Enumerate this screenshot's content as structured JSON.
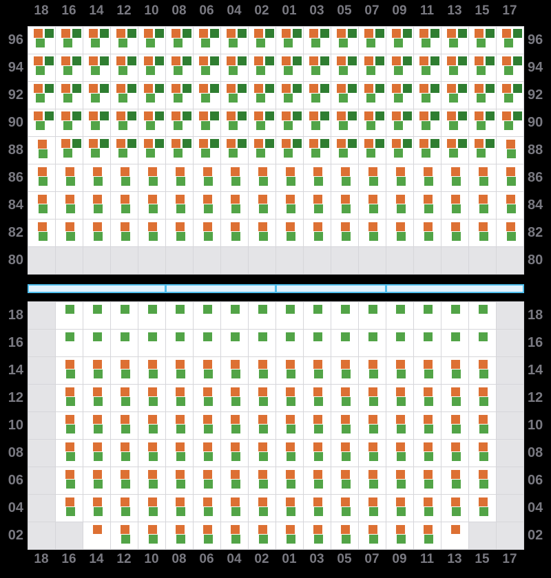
{
  "palette": {
    "background": "#000000",
    "cell_bg": "#ffffff",
    "cell_border": "#d6d6da",
    "empty_cell_bg": "#e4e4e7",
    "orange": "#dd7033",
    "dark_green": "#2f7e31",
    "green": "#52a447",
    "label_color": "#797981",
    "corridor_fill": "#e1f1fc",
    "corridor_border": "#50bfee"
  },
  "columns": [
    "18",
    "16",
    "14",
    "12",
    "10",
    "08",
    "06",
    "04",
    "02",
    "01",
    "03",
    "05",
    "07",
    "09",
    "11",
    "13",
    "15",
    "17"
  ],
  "cell_types": {
    "T": [
      "orange",
      "dark_green",
      "green"
    ],
    "D": [
      "orange",
      "green"
    ],
    "G": [
      "green"
    ],
    "O": [
      "orange"
    ],
    "X": []
  },
  "upper_panel": {
    "rows": [
      {
        "label": "96",
        "cells": "TTTTTTTTTTTTTTTTTT"
      },
      {
        "label": "94",
        "cells": "TTTTTTTTTTTTTTTTTT"
      },
      {
        "label": "92",
        "cells": "TTTTTTTTTTTTTTTTTT"
      },
      {
        "label": "90",
        "cells": "TTTTTTTTTTTTTTTTTT"
      },
      {
        "label": "88",
        "cells": "DTTTTTTTTTTTTTTTTD"
      },
      {
        "label": "86",
        "cells": "DDDDDDDDDDDDDDDDDD"
      },
      {
        "label": "84",
        "cells": "DDDDDDDDDDDDDDDDDD"
      },
      {
        "label": "82",
        "cells": "DDDDDDDDDDDDDDDDDD"
      },
      {
        "label": "80",
        "cells": "XXXXXXXXXXXXXXXXXX"
      }
    ]
  },
  "corridor": {
    "segments_in_columns": [
      5,
      4,
      4,
      5
    ]
  },
  "lower_panel": {
    "rows": [
      {
        "label": "18",
        "cells": "XGGGGGGGGGGGGGGGGX"
      },
      {
        "label": "16",
        "cells": "XGGGGGGGGGGGGGGGGX"
      },
      {
        "label": "14",
        "cells": "XDDDDDDDDDDDDDDDDX"
      },
      {
        "label": "12",
        "cells": "XDDDDDDDDDDDDDDDDX"
      },
      {
        "label": "10",
        "cells": "XDDDDDDDDDDDDDDDDX"
      },
      {
        "label": "08",
        "cells": "XDDDDDDDDDDDDDDDDX"
      },
      {
        "label": "06",
        "cells": "XDDDDDDDDDDDDDDDDX"
      },
      {
        "label": "04",
        "cells": "XDDDDDDDDDDDDDDDDX"
      },
      {
        "label": "02",
        "cells": "XXODDDDDDDDDDDDOXX"
      }
    ]
  }
}
